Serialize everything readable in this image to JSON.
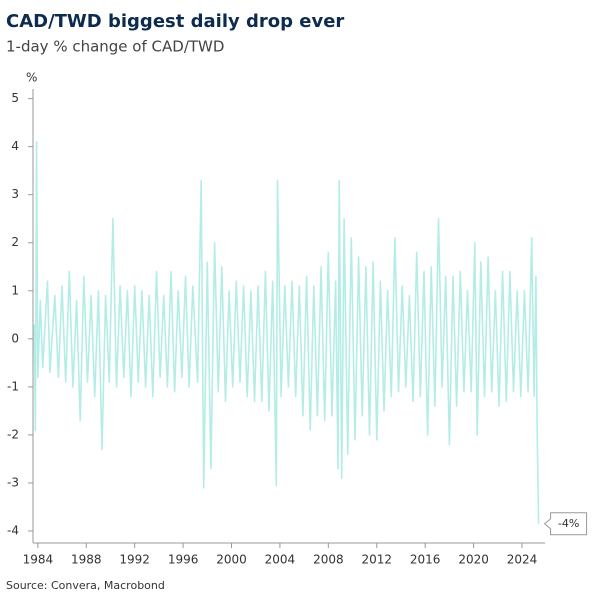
{
  "chart_data": {
    "type": "line",
    "title": "CAD/TWD biggest daily drop ever",
    "subtitle": "1-day % change of CAD/TWD",
    "y_unit": "%",
    "source": "Source: Convera, Macrobond",
    "annotation": "-4%",
    "xlim": [
      1983.6,
      2025.9
    ],
    "xticks": [
      1984,
      1988,
      1992,
      1996,
      2000,
      2004,
      2008,
      2012,
      2016,
      2020,
      2024
    ],
    "ylim": [
      -4.25,
      5.2
    ],
    "yticks": [
      -4,
      -3,
      -2,
      -1,
      0,
      1,
      2,
      3,
      4,
      5
    ],
    "x": [
      1983.7,
      1983.8,
      1983.9,
      1984.0,
      1984.2,
      1984.4,
      1984.8,
      1985.0,
      1985.4,
      1985.7,
      1986.0,
      1986.3,
      1986.6,
      1986.9,
      1987.2,
      1987.5,
      1987.8,
      1988.1,
      1988.4,
      1988.7,
      1989.0,
      1989.3,
      1989.6,
      1989.9,
      1990.2,
      1990.5,
      1990.8,
      1991.1,
      1991.4,
      1991.7,
      1992.0,
      1992.3,
      1992.6,
      1992.9,
      1993.2,
      1993.5,
      1993.8,
      1994.1,
      1994.4,
      1994.7,
      1995.0,
      1995.3,
      1995.6,
      1995.9,
      1996.2,
      1996.5,
      1996.8,
      1997.2,
      1997.5,
      1997.7,
      1998.0,
      1998.3,
      1998.6,
      1998.9,
      1999.2,
      1999.5,
      1999.8,
      2000.1,
      2000.4,
      2000.7,
      2001.0,
      2001.3,
      2001.6,
      2001.9,
      2002.2,
      2002.5,
      2002.8,
      2003.1,
      2003.4,
      2003.7,
      2003.8,
      2004.1,
      2004.4,
      2004.7,
      2005.0,
      2005.3,
      2005.6,
      2005.9,
      2006.2,
      2006.5,
      2006.8,
      2007.1,
      2007.4,
      2007.7,
      2008.0,
      2008.3,
      2008.6,
      2008.8,
      2008.9,
      2009.1,
      2009.3,
      2009.6,
      2009.9,
      2010.2,
      2010.5,
      2010.8,
      2011.1,
      2011.4,
      2011.7,
      2012.0,
      2012.3,
      2012.6,
      2012.9,
      2013.2,
      2013.5,
      2013.8,
      2014.1,
      2014.4,
      2014.7,
      2015.0,
      2015.3,
      2015.6,
      2015.9,
      2016.2,
      2016.5,
      2016.8,
      2017.1,
      2017.4,
      2017.7,
      2018.0,
      2018.3,
      2018.6,
      2018.9,
      2019.2,
      2019.5,
      2019.8,
      2020.1,
      2020.3,
      2020.6,
      2020.9,
      2021.2,
      2021.5,
      2021.8,
      2022.1,
      2022.4,
      2022.7,
      2023.0,
      2023.3,
      2023.6,
      2023.9,
      2024.2,
      2024.5,
      2024.8,
      2025.0,
      2025.15,
      2025.25,
      2025.37
    ],
    "series": [
      {
        "name": "CAD/TWD",
        "color": "#b4ede7",
        "values": [
          0.3,
          -1.9,
          4.1,
          -0.8,
          0.8,
          -0.6,
          1.2,
          -0.7,
          0.9,
          -0.8,
          1.1,
          -0.9,
          1.4,
          -1.0,
          0.8,
          -1.7,
          1.3,
          -0.9,
          0.9,
          -1.2,
          1.0,
          -2.3,
          0.9,
          -0.9,
          2.5,
          -1.0,
          1.1,
          -0.8,
          1.0,
          -1.2,
          1.1,
          -0.9,
          1.0,
          -1.0,
          0.9,
          -1.2,
          1.4,
          -0.8,
          0.9,
          -1.0,
          1.4,
          -1.1,
          1.0,
          -0.8,
          1.3,
          -1.0,
          1.1,
          -0.9,
          3.3,
          -3.1,
          1.6,
          -2.7,
          2.0,
          -1.1,
          1.5,
          -1.3,
          1.0,
          -1.0,
          1.2,
          -0.9,
          1.1,
          -1.2,
          1.0,
          -1.3,
          1.1,
          -1.3,
          1.4,
          -1.5,
          1.2,
          -3.05,
          3.3,
          -1.2,
          1.1,
          -1.0,
          1.2,
          -1.2,
          1.1,
          -1.6,
          1.3,
          -1.9,
          1.1,
          -1.6,
          1.5,
          -1.7,
          1.8,
          -1.6,
          1.2,
          -2.7,
          3.3,
          -2.9,
          2.5,
          -2.4,
          2.1,
          -2.1,
          1.7,
          -1.6,
          1.5,
          -2.0,
          1.6,
          -2.1,
          1.2,
          -1.5,
          1.0,
          -1.2,
          2.1,
          -1.1,
          1.1,
          -1.0,
          0.9,
          -1.3,
          1.8,
          -1.2,
          1.4,
          -2.0,
          1.5,
          -1.4,
          2.5,
          -1.0,
          1.3,
          -2.2,
          1.3,
          -1.4,
          1.4,
          -1.1,
          1.0,
          -1.1,
          2.0,
          -2.0,
          1.6,
          -1.2,
          1.7,
          -1.1,
          1.0,
          -1.4,
          1.4,
          -1.3,
          1.4,
          -1.1,
          1.0,
          -1.2,
          1.0,
          -1.1,
          2.1,
          -1.2,
          1.3,
          -1.8,
          -3.85
        ]
      }
    ]
  }
}
